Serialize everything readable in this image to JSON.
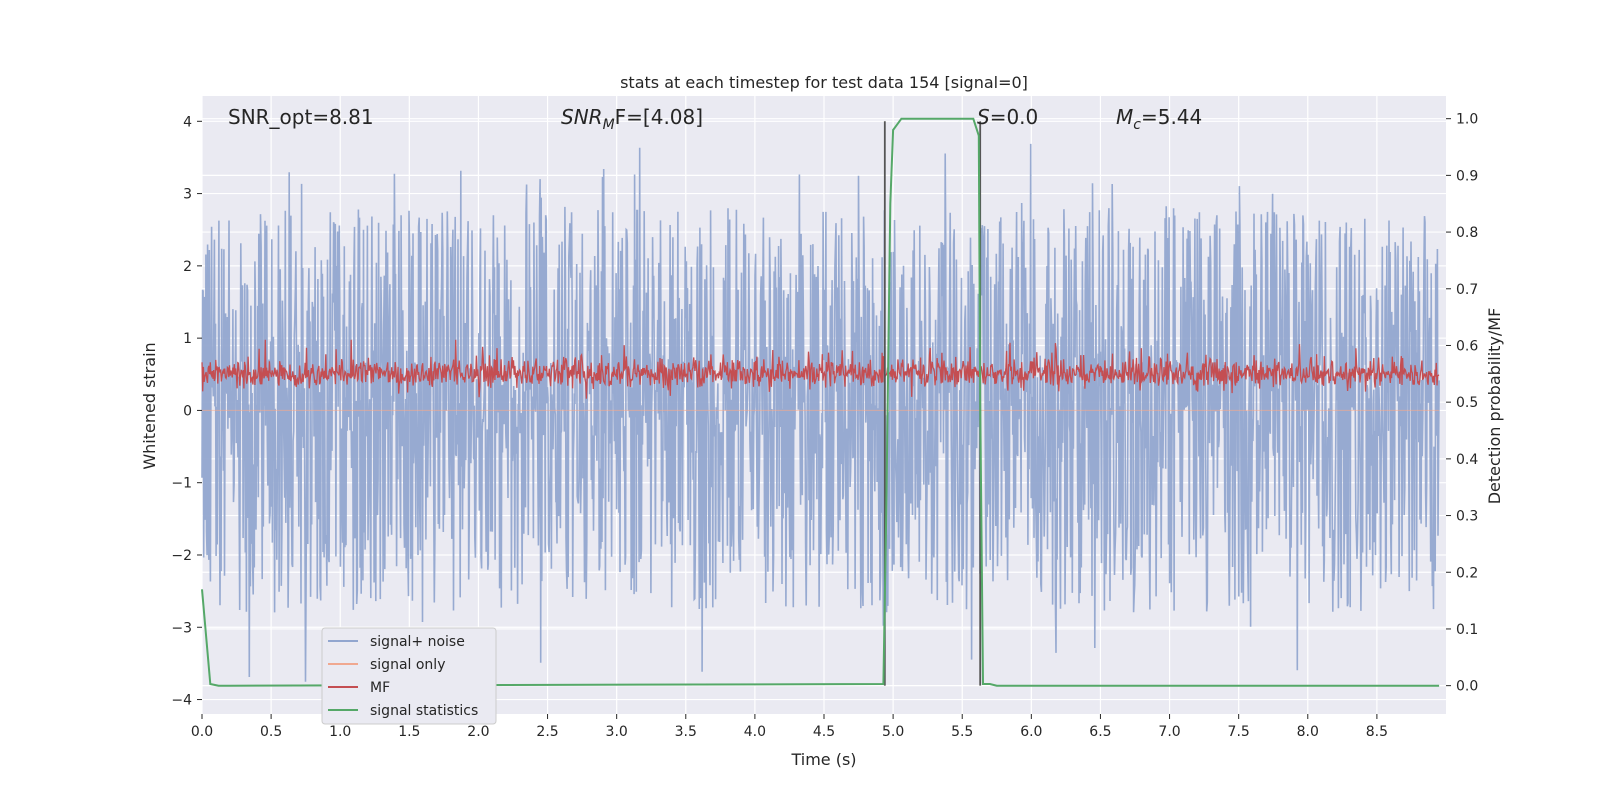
{
  "chart_data": {
    "type": "line",
    "title": "stats at each timestep for test data 154 [signal=0]",
    "xlabel": "Time (s)",
    "ylabel_left": "Whitened strain",
    "ylabel_right": "Detection probability/MF",
    "xlim": [
      0.0,
      9.0
    ],
    "ylim_left": [
      -4.2,
      4.35
    ],
    "ylim_right": [
      -0.05,
      1.04
    ],
    "x_ticks": [
      0.0,
      0.5,
      1.0,
      1.5,
      2.0,
      2.5,
      3.0,
      3.5,
      4.0,
      4.5,
      5.0,
      5.5,
      6.0,
      6.5,
      7.0,
      7.5,
      8.0,
      8.5
    ],
    "x_tick_labels": [
      "0.0",
      "0.5",
      "1.0",
      "1.5",
      "2.0",
      "2.5",
      "3.0",
      "3.5",
      "4.0",
      "4.5",
      "5.0",
      "5.5",
      "6.0",
      "6.5",
      "7.0",
      "7.5",
      "8.0",
      "8.5"
    ],
    "y_ticks_left": [
      4,
      3,
      2,
      1,
      0,
      -1,
      -2,
      -3,
      -4
    ],
    "y_tick_labels_left": [
      "4",
      "3",
      "2",
      "1",
      "0",
      "−1",
      "−2",
      "−3",
      "−4"
    ],
    "y_ticks_right": [
      1.0,
      0.9,
      0.8,
      0.7,
      0.6,
      0.5,
      0.4,
      0.3,
      0.2,
      0.1,
      0.0
    ],
    "y_tick_labels_right": [
      "1.0",
      "0.9",
      "0.8",
      "0.7",
      "0.6",
      "0.5",
      "0.4",
      "0.3",
      "0.2",
      "0.1",
      "0.0"
    ],
    "grid": true,
    "legend_position": "lower-left",
    "annotations": {
      "snr_opt": "SNR_opt=8.81",
      "snr_mf_main": "SNR",
      "snr_mf_sub": "M",
      "snr_mf_tail": "F=[4.08]",
      "s_main": "S",
      "s_tail": "=0.0",
      "mc_main": "M",
      "mc_sub": "c",
      "mc_tail": "=5.44"
    },
    "vlines": [
      4.94,
      5.63
    ],
    "series": [
      {
        "name": "signal+ noise",
        "color": "#92a6cf",
        "axis": "left",
        "band_low": -2.4,
        "band_high": 2.4,
        "peak_max": 4.0,
        "peak_min": -3.8
      },
      {
        "name": "signal only",
        "color": "#f0a890",
        "axis": "left",
        "values_constant": 0.0
      },
      {
        "name": "MF",
        "color": "#c44e52",
        "axis": "right",
        "range_low": 0.5,
        "range_high": 0.61
      },
      {
        "name": "signal statistics",
        "color": "#55a868",
        "axis": "right",
        "x": [
          0.0,
          0.06,
          0.12,
          0.2,
          4.93,
          4.95,
          4.98,
          5.0,
          5.06,
          5.58,
          5.62,
          5.63,
          5.65,
          5.7,
          5.75,
          8.95
        ],
        "y": [
          0.17,
          0.003,
          0.0,
          0.0,
          0.003,
          0.3,
          0.85,
          0.98,
          1.0,
          1.0,
          0.97,
          0.5,
          0.003,
          0.003,
          0.0,
          0.0
        ]
      }
    ]
  },
  "colors": {
    "plot_background": "#eaeaf2",
    "grid": "#ffffff",
    "vline": "#555555"
  }
}
